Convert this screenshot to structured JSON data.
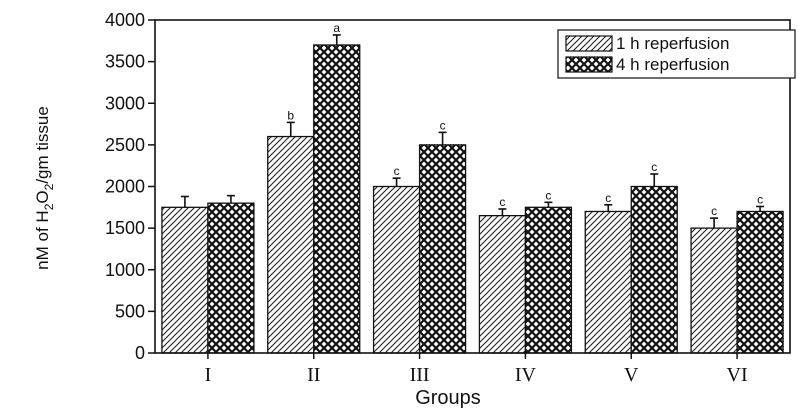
{
  "chart_data": {
    "type": "bar",
    "title": "",
    "xlabel": "Groups",
    "ylabel": {
      "prefix": "nM of H",
      "sub1": "2",
      "mid": "O",
      "sub2": "2",
      "suffix": "/gm tissue"
    },
    "ylim": [
      0,
      4000
    ],
    "yticks": [
      "0",
      "500",
      "1000",
      "1500",
      "2000",
      "2500",
      "3000",
      "3500",
      "4000"
    ],
    "categories": [
      "I",
      "II",
      "III",
      "IV",
      "V",
      "VI"
    ],
    "series": [
      {
        "name": "1 h reperfusion",
        "pattern": "diagonal-hatch",
        "values": [
          1750,
          2600,
          2000,
          1650,
          1700,
          1500
        ],
        "errors": [
          130,
          170,
          100,
          80,
          80,
          120
        ],
        "labels": [
          "",
          "b",
          "c",
          "c",
          "c",
          "c"
        ]
      },
      {
        "name": "4 h reperfusion",
        "pattern": "crosshatch",
        "values": [
          1800,
          3700,
          2500,
          1750,
          2000,
          1700
        ],
        "errors": [
          90,
          120,
          150,
          60,
          150,
          60
        ],
        "labels": [
          "",
          "a",
          "c",
          "c",
          "c",
          "c"
        ]
      }
    ],
    "legend_position": "top-right",
    "grid": false
  }
}
